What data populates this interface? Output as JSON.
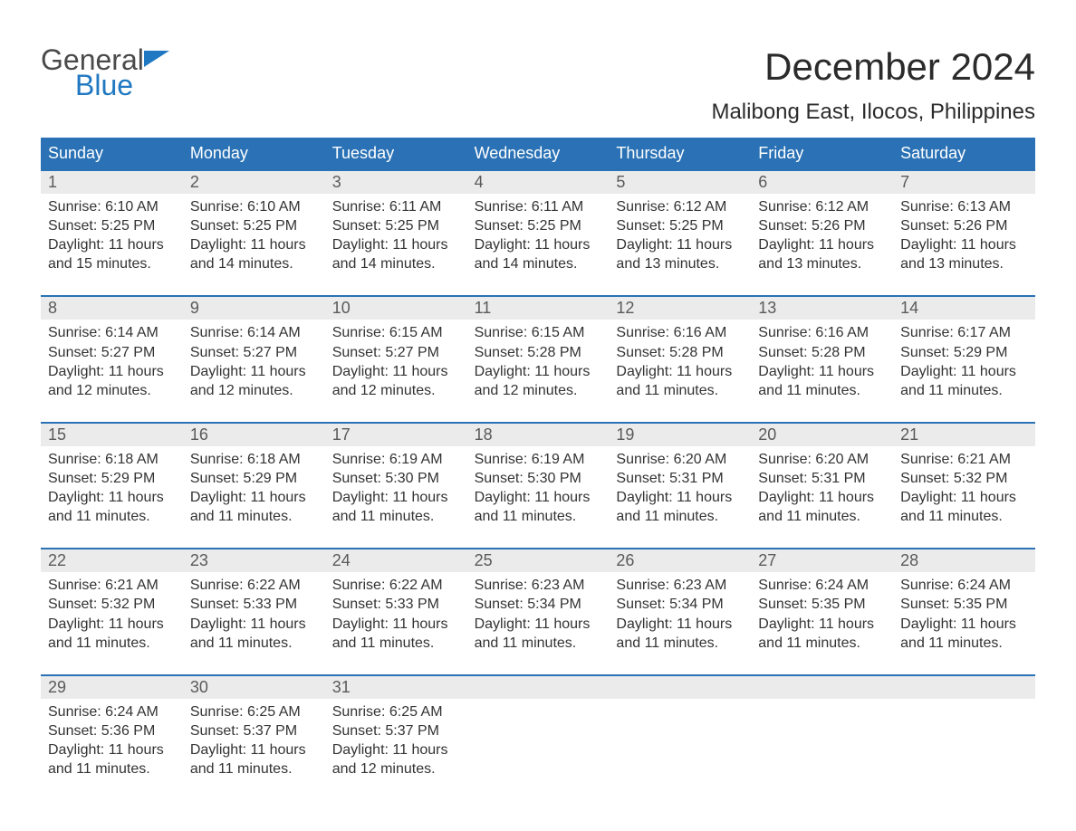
{
  "brand": {
    "line1": "General",
    "line2": "Blue",
    "accent_color": "#1f78c1"
  },
  "header": {
    "month_title": "December 2024",
    "location": "Malibong East, Ilocos, Philippines"
  },
  "style": {
    "header_bg": "#2a72b5",
    "header_fg": "#ffffff",
    "daynum_bg": "#ebebeb",
    "daynum_fg": "#5a5a5a",
    "body_fg": "#333333",
    "week_border": "#2a72b5",
    "page_bg": "#ffffff",
    "title_fontsize": 42,
    "location_fontsize": 24,
    "weekday_fontsize": 18,
    "daynum_fontsize": 18,
    "body_fontsize": 16
  },
  "weekdays": [
    "Sunday",
    "Monday",
    "Tuesday",
    "Wednesday",
    "Thursday",
    "Friday",
    "Saturday"
  ],
  "days": [
    {
      "n": "1",
      "sunrise": "6:10 AM",
      "sunset": "5:25 PM",
      "daylight": "11 hours and 15 minutes."
    },
    {
      "n": "2",
      "sunrise": "6:10 AM",
      "sunset": "5:25 PM",
      "daylight": "11 hours and 14 minutes."
    },
    {
      "n": "3",
      "sunrise": "6:11 AM",
      "sunset": "5:25 PM",
      "daylight": "11 hours and 14 minutes."
    },
    {
      "n": "4",
      "sunrise": "6:11 AM",
      "sunset": "5:25 PM",
      "daylight": "11 hours and 14 minutes."
    },
    {
      "n": "5",
      "sunrise": "6:12 AM",
      "sunset": "5:25 PM",
      "daylight": "11 hours and 13 minutes."
    },
    {
      "n": "6",
      "sunrise": "6:12 AM",
      "sunset": "5:26 PM",
      "daylight": "11 hours and 13 minutes."
    },
    {
      "n": "7",
      "sunrise": "6:13 AM",
      "sunset": "5:26 PM",
      "daylight": "11 hours and 13 minutes."
    },
    {
      "n": "8",
      "sunrise": "6:14 AM",
      "sunset": "5:27 PM",
      "daylight": "11 hours and 12 minutes."
    },
    {
      "n": "9",
      "sunrise": "6:14 AM",
      "sunset": "5:27 PM",
      "daylight": "11 hours and 12 minutes."
    },
    {
      "n": "10",
      "sunrise": "6:15 AM",
      "sunset": "5:27 PM",
      "daylight": "11 hours and 12 minutes."
    },
    {
      "n": "11",
      "sunrise": "6:15 AM",
      "sunset": "5:28 PM",
      "daylight": "11 hours and 12 minutes."
    },
    {
      "n": "12",
      "sunrise": "6:16 AM",
      "sunset": "5:28 PM",
      "daylight": "11 hours and 11 minutes."
    },
    {
      "n": "13",
      "sunrise": "6:16 AM",
      "sunset": "5:28 PM",
      "daylight": "11 hours and 11 minutes."
    },
    {
      "n": "14",
      "sunrise": "6:17 AM",
      "sunset": "5:29 PM",
      "daylight": "11 hours and 11 minutes."
    },
    {
      "n": "15",
      "sunrise": "6:18 AM",
      "sunset": "5:29 PM",
      "daylight": "11 hours and 11 minutes."
    },
    {
      "n": "16",
      "sunrise": "6:18 AM",
      "sunset": "5:29 PM",
      "daylight": "11 hours and 11 minutes."
    },
    {
      "n": "17",
      "sunrise": "6:19 AM",
      "sunset": "5:30 PM",
      "daylight": "11 hours and 11 minutes."
    },
    {
      "n": "18",
      "sunrise": "6:19 AM",
      "sunset": "5:30 PM",
      "daylight": "11 hours and 11 minutes."
    },
    {
      "n": "19",
      "sunrise": "6:20 AM",
      "sunset": "5:31 PM",
      "daylight": "11 hours and 11 minutes."
    },
    {
      "n": "20",
      "sunrise": "6:20 AM",
      "sunset": "5:31 PM",
      "daylight": "11 hours and 11 minutes."
    },
    {
      "n": "21",
      "sunrise": "6:21 AM",
      "sunset": "5:32 PM",
      "daylight": "11 hours and 11 minutes."
    },
    {
      "n": "22",
      "sunrise": "6:21 AM",
      "sunset": "5:32 PM",
      "daylight": "11 hours and 11 minutes."
    },
    {
      "n": "23",
      "sunrise": "6:22 AM",
      "sunset": "5:33 PM",
      "daylight": "11 hours and 11 minutes."
    },
    {
      "n": "24",
      "sunrise": "6:22 AM",
      "sunset": "5:33 PM",
      "daylight": "11 hours and 11 minutes."
    },
    {
      "n": "25",
      "sunrise": "6:23 AM",
      "sunset": "5:34 PM",
      "daylight": "11 hours and 11 minutes."
    },
    {
      "n": "26",
      "sunrise": "6:23 AM",
      "sunset": "5:34 PM",
      "daylight": "11 hours and 11 minutes."
    },
    {
      "n": "27",
      "sunrise": "6:24 AM",
      "sunset": "5:35 PM",
      "daylight": "11 hours and 11 minutes."
    },
    {
      "n": "28",
      "sunrise": "6:24 AM",
      "sunset": "5:35 PM",
      "daylight": "11 hours and 11 minutes."
    },
    {
      "n": "29",
      "sunrise": "6:24 AM",
      "sunset": "5:36 PM",
      "daylight": "11 hours and 11 minutes."
    },
    {
      "n": "30",
      "sunrise": "6:25 AM",
      "sunset": "5:37 PM",
      "daylight": "11 hours and 11 minutes."
    },
    {
      "n": "31",
      "sunrise": "6:25 AM",
      "sunset": "5:37 PM",
      "daylight": "11 hours and 12 minutes."
    }
  ],
  "labels": {
    "sunrise": "Sunrise:",
    "sunset": "Sunset:",
    "daylight": "Daylight:"
  },
  "layout": {
    "first_weekday_index": 0,
    "total_cells": 35
  }
}
